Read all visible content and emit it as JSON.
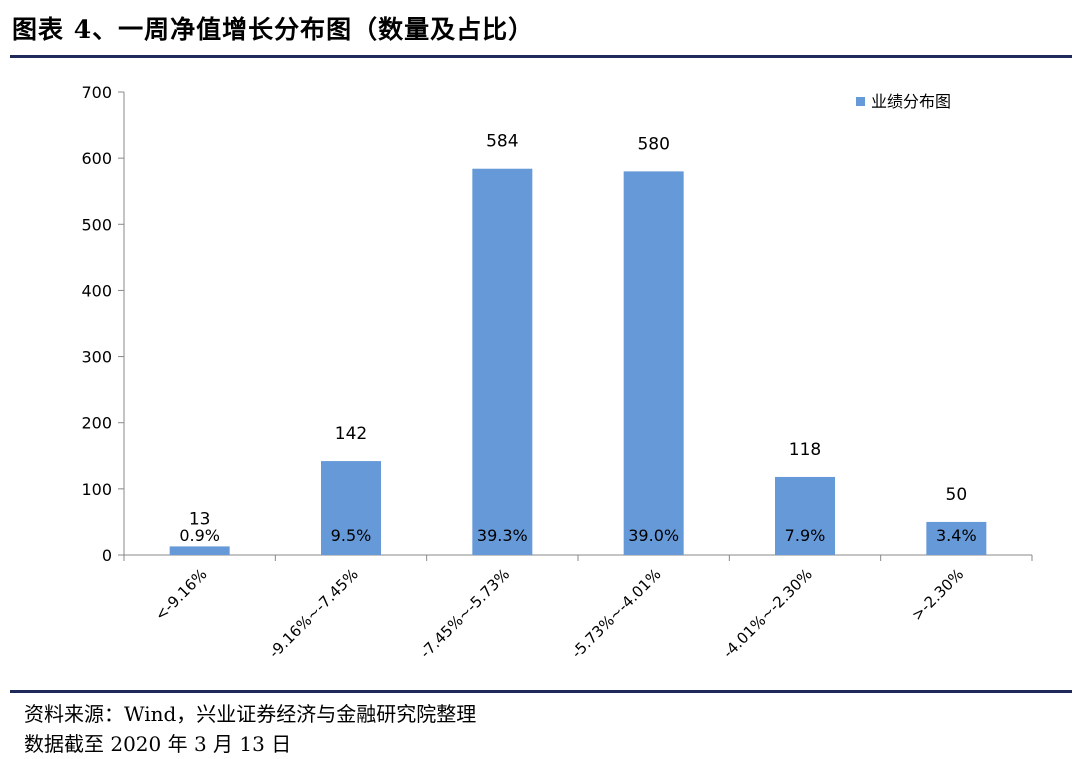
{
  "title": "图表 4、一周净值增长分布图（数量及占比）",
  "footer": {
    "source": "资料来源：Wind，兴业证券经济与金融研究院整理",
    "cutoff": "数据截至 2020 年 3 月 13 日"
  },
  "chart_data": {
    "type": "bar",
    "categories": [
      "<-9.16%",
      "-9.16%~-7.45%",
      "-7.45%~-5.73%",
      "-5.73%~-4.01%",
      "-4.01%~-2.30%",
      ">-2.30%"
    ],
    "series": [
      {
        "name": "业绩分布图",
        "values": [
          13,
          142,
          584,
          580,
          118,
          50
        ],
        "shares": [
          "0.9%",
          "9.5%",
          "39.3%",
          "39.0%",
          "7.9%",
          "3.4%"
        ]
      }
    ],
    "ylim": [
      0,
      700
    ],
    "yticks": [
      0,
      100,
      200,
      300,
      400,
      500,
      600,
      700
    ],
    "legend_position": "top-right",
    "grid": false,
    "bar_color": "#6699d8"
  }
}
